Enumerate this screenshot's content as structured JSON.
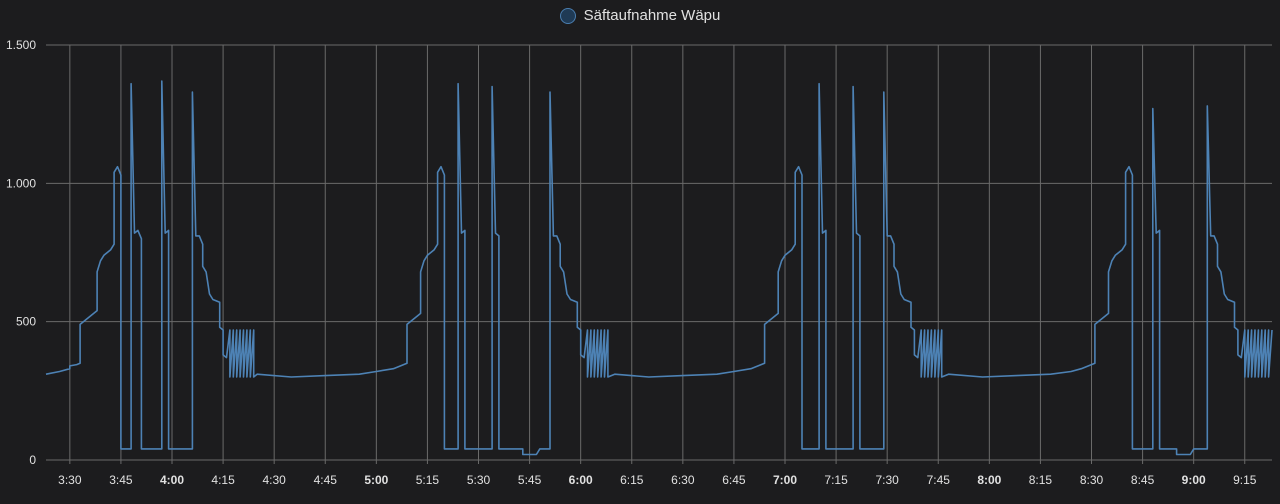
{
  "legend": {
    "label": "Säftaufnahme Wäpu"
  },
  "colors": {
    "line": "#4d82b5",
    "grid": "#6a6a6a",
    "background": "#1c1c1e",
    "text": "#e1e1e1"
  },
  "chart_data": {
    "type": "line",
    "title": "",
    "xlabel": "",
    "ylabel": "",
    "grid": true,
    "legend_position": "top-center",
    "xlim": [
      "3:23",
      "9:23"
    ],
    "ylim": [
      0,
      1500
    ],
    "y_ticks": [
      {
        "value": 0,
        "label": "0"
      },
      {
        "value": 500,
        "label": "500"
      },
      {
        "value": 1000,
        "label": "1.000"
      },
      {
        "value": 1500,
        "label": "1.500"
      }
    ],
    "x_ticks": [
      {
        "value": "3:30",
        "label": "3:30",
        "bold": false
      },
      {
        "value": "3:45",
        "label": "3:45",
        "bold": false
      },
      {
        "value": "4:00",
        "label": "4:00",
        "bold": true
      },
      {
        "value": "4:15",
        "label": "4:15",
        "bold": false
      },
      {
        "value": "4:30",
        "label": "4:30",
        "bold": false
      },
      {
        "value": "4:45",
        "label": "4:45",
        "bold": false
      },
      {
        "value": "5:00",
        "label": "5:00",
        "bold": true
      },
      {
        "value": "5:15",
        "label": "5:15",
        "bold": false
      },
      {
        "value": "5:30",
        "label": "5:30",
        "bold": false
      },
      {
        "value": "5:45",
        "label": "5:45",
        "bold": false
      },
      {
        "value": "6:00",
        "label": "6:00",
        "bold": true
      },
      {
        "value": "6:15",
        "label": "6:15",
        "bold": false
      },
      {
        "value": "6:30",
        "label": "6:30",
        "bold": false
      },
      {
        "value": "6:45",
        "label": "6:45",
        "bold": false
      },
      {
        "value": "7:00",
        "label": "7:00",
        "bold": true
      },
      {
        "value": "7:15",
        "label": "7:15",
        "bold": false
      },
      {
        "value": "7:30",
        "label": "7:30",
        "bold": false
      },
      {
        "value": "7:45",
        "label": "7:45",
        "bold": false
      },
      {
        "value": "8:00",
        "label": "8:00",
        "bold": true
      },
      {
        "value": "8:15",
        "label": "8:15",
        "bold": false
      },
      {
        "value": "8:30",
        "label": "8:30",
        "bold": false
      },
      {
        "value": "8:45",
        "label": "8:45",
        "bold": false
      },
      {
        "value": "9:00",
        "label": "9:00",
        "bold": true
      },
      {
        "value": "9:15",
        "label": "9:15",
        "bold": false
      }
    ],
    "series": [
      {
        "name": "Säftaufnahme Wäpu",
        "points": [
          [
            "3:23",
            310
          ],
          [
            "3:27",
            320
          ],
          [
            "3:30",
            330
          ],
          [
            "3:30",
            340
          ],
          [
            "3:32",
            345
          ],
          [
            "3:33",
            350
          ],
          [
            "3:33",
            490
          ],
          [
            "3:35",
            510
          ],
          [
            "3:36",
            520
          ],
          [
            "3:37",
            530
          ],
          [
            "3:38",
            540
          ],
          [
            "3:38",
            680
          ],
          [
            "3:39",
            720
          ],
          [
            "3:40",
            740
          ],
          [
            "3:42",
            760
          ],
          [
            "3:43",
            780
          ],
          [
            "3:43",
            1040
          ],
          [
            "3:44",
            1060
          ],
          [
            "3:45",
            1030
          ],
          [
            "3:45",
            40
          ],
          [
            "3:48",
            40
          ],
          [
            "3:48",
            1360
          ],
          [
            "3:49",
            820
          ],
          [
            "3:50",
            830
          ],
          [
            "3:51",
            800
          ],
          [
            "3:51",
            40
          ],
          [
            "3:57",
            40
          ],
          [
            "3:57",
            1370
          ],
          [
            "3:58",
            820
          ],
          [
            "3:59",
            830
          ],
          [
            "3:59",
            40
          ],
          [
            "4:06",
            40
          ],
          [
            "4:06",
            1330
          ],
          [
            "4:07",
            810
          ],
          [
            "4:08",
            810
          ],
          [
            "4:09",
            780
          ],
          [
            "4:09",
            700
          ],
          [
            "4:10",
            680
          ],
          [
            "4:11",
            600
          ],
          [
            "4:12",
            580
          ],
          [
            "4:14",
            570
          ],
          [
            "4:14",
            480
          ],
          [
            "4:15",
            470
          ],
          [
            "4:15",
            380
          ],
          [
            "4:16",
            370
          ],
          [
            "4:17",
            470
          ],
          [
            "4:17",
            300
          ],
          [
            "4:18",
            470
          ],
          [
            "4:18",
            300
          ],
          [
            "4:19",
            470
          ],
          [
            "4:19",
            300
          ],
          [
            "4:20",
            470
          ],
          [
            "4:20",
            300
          ],
          [
            "4:21",
            470
          ],
          [
            "4:21",
            300
          ],
          [
            "4:22",
            470
          ],
          [
            "4:22",
            300
          ],
          [
            "4:23",
            470
          ],
          [
            "4:23",
            300
          ],
          [
            "4:24",
            470
          ],
          [
            "4:24",
            300
          ],
          [
            "4:25",
            310
          ],
          [
            "4:35",
            300
          ],
          [
            "4:45",
            305
          ],
          [
            "4:55",
            310
          ],
          [
            "5:00",
            320
          ],
          [
            "5:05",
            330
          ],
          [
            "5:09",
            350
          ],
          [
            "5:09",
            490
          ],
          [
            "5:11",
            510
          ],
          [
            "5:12",
            520
          ],
          [
            "5:13",
            530
          ],
          [
            "5:13",
            680
          ],
          [
            "5:14",
            720
          ],
          [
            "5:15",
            740
          ],
          [
            "5:17",
            760
          ],
          [
            "5:18",
            780
          ],
          [
            "5:18",
            1040
          ],
          [
            "5:19",
            1060
          ],
          [
            "5:20",
            1030
          ],
          [
            "5:20",
            40
          ],
          [
            "5:24",
            40
          ],
          [
            "5:24",
            1360
          ],
          [
            "5:25",
            820
          ],
          [
            "5:26",
            830
          ],
          [
            "5:26",
            40
          ],
          [
            "5:34",
            40
          ],
          [
            "5:34",
            1350
          ],
          [
            "5:35",
            820
          ],
          [
            "5:36",
            810
          ],
          [
            "5:36",
            40
          ],
          [
            "5:43",
            40
          ],
          [
            "5:43",
            20
          ],
          [
            "5:47",
            20
          ],
          [
            "5:48",
            40
          ],
          [
            "5:51",
            40
          ],
          [
            "5:51",
            1330
          ],
          [
            "5:52",
            810
          ],
          [
            "5:53",
            810
          ],
          [
            "5:54",
            780
          ],
          [
            "5:54",
            700
          ],
          [
            "5:55",
            680
          ],
          [
            "5:56",
            600
          ],
          [
            "5:57",
            580
          ],
          [
            "5:59",
            570
          ],
          [
            "5:59",
            480
          ],
          [
            "6:00",
            470
          ],
          [
            "6:00",
            380
          ],
          [
            "6:01",
            370
          ],
          [
            "6:02",
            470
          ],
          [
            "6:02",
            300
          ],
          [
            "6:03",
            470
          ],
          [
            "6:03",
            300
          ],
          [
            "6:04",
            470
          ],
          [
            "6:04",
            300
          ],
          [
            "6:05",
            470
          ],
          [
            "6:05",
            300
          ],
          [
            "6:06",
            470
          ],
          [
            "6:06",
            300
          ],
          [
            "6:07",
            470
          ],
          [
            "6:07",
            300
          ],
          [
            "6:08",
            470
          ],
          [
            "6:08",
            300
          ],
          [
            "6:10",
            310
          ],
          [
            "6:20",
            300
          ],
          [
            "6:30",
            305
          ],
          [
            "6:40",
            310
          ],
          [
            "6:45",
            320
          ],
          [
            "6:50",
            330
          ],
          [
            "6:54",
            350
          ],
          [
            "6:54",
            490
          ],
          [
            "6:56",
            510
          ],
          [
            "6:57",
            520
          ],
          [
            "6:58",
            530
          ],
          [
            "6:58",
            680
          ],
          [
            "6:59",
            720
          ],
          [
            "7:00",
            740
          ],
          [
            "7:02",
            760
          ],
          [
            "7:03",
            780
          ],
          [
            "7:03",
            1040
          ],
          [
            "7:04",
            1060
          ],
          [
            "7:05",
            1030
          ],
          [
            "7:05",
            40
          ],
          [
            "7:10",
            40
          ],
          [
            "7:10",
            1360
          ],
          [
            "7:11",
            820
          ],
          [
            "7:12",
            830
          ],
          [
            "7:12",
            40
          ],
          [
            "7:20",
            40
          ],
          [
            "7:20",
            1350
          ],
          [
            "7:21",
            820
          ],
          [
            "7:22",
            810
          ],
          [
            "7:22",
            40
          ],
          [
            "7:29",
            40
          ],
          [
            "7:29",
            1330
          ],
          [
            "7:30",
            810
          ],
          [
            "7:31",
            810
          ],
          [
            "7:32",
            780
          ],
          [
            "7:32",
            700
          ],
          [
            "7:33",
            680
          ],
          [
            "7:34",
            600
          ],
          [
            "7:35",
            580
          ],
          [
            "7:37",
            570
          ],
          [
            "7:37",
            480
          ],
          [
            "7:38",
            470
          ],
          [
            "7:38",
            380
          ],
          [
            "7:39",
            370
          ],
          [
            "7:40",
            470
          ],
          [
            "7:40",
            300
          ],
          [
            "7:41",
            470
          ],
          [
            "7:41",
            300
          ],
          [
            "7:42",
            470
          ],
          [
            "7:42",
            300
          ],
          [
            "7:43",
            470
          ],
          [
            "7:43",
            300
          ],
          [
            "7:44",
            470
          ],
          [
            "7:44",
            300
          ],
          [
            "7:45",
            470
          ],
          [
            "7:45",
            300
          ],
          [
            "7:46",
            470
          ],
          [
            "7:46",
            300
          ],
          [
            "7:48",
            310
          ],
          [
            "7:58",
            300
          ],
          [
            "8:08",
            305
          ],
          [
            "8:18",
            310
          ],
          [
            "8:24",
            320
          ],
          [
            "8:27",
            330
          ],
          [
            "8:31",
            350
          ],
          [
            "8:31",
            490
          ],
          [
            "8:33",
            510
          ],
          [
            "8:34",
            520
          ],
          [
            "8:35",
            530
          ],
          [
            "8:35",
            680
          ],
          [
            "8:36",
            720
          ],
          [
            "8:37",
            740
          ],
          [
            "8:39",
            760
          ],
          [
            "8:40",
            780
          ],
          [
            "8:40",
            1040
          ],
          [
            "8:41",
            1060
          ],
          [
            "8:42",
            1030
          ],
          [
            "8:42",
            40
          ],
          [
            "8:48",
            40
          ],
          [
            "8:48",
            1270
          ],
          [
            "8:49",
            820
          ],
          [
            "8:50",
            830
          ],
          [
            "8:50",
            40
          ],
          [
            "8:55",
            40
          ],
          [
            "8:55",
            20
          ],
          [
            "8:59",
            20
          ],
          [
            "9:00",
            40
          ],
          [
            "9:04",
            40
          ],
          [
            "9:04",
            1280
          ],
          [
            "9:05",
            810
          ],
          [
            "9:06",
            810
          ],
          [
            "9:07",
            780
          ],
          [
            "9:07",
            700
          ],
          [
            "9:08",
            680
          ],
          [
            "9:09",
            600
          ],
          [
            "9:10",
            580
          ],
          [
            "9:12",
            570
          ],
          [
            "9:12",
            480
          ],
          [
            "9:13",
            470
          ],
          [
            "9:13",
            380
          ],
          [
            "9:14",
            370
          ],
          [
            "9:15",
            470
          ],
          [
            "9:15",
            300
          ],
          [
            "9:16",
            470
          ],
          [
            "9:16",
            300
          ],
          [
            "9:17",
            470
          ],
          [
            "9:17",
            300
          ],
          [
            "9:18",
            470
          ],
          [
            "9:18",
            300
          ],
          [
            "9:19",
            470
          ],
          [
            "9:19",
            300
          ],
          [
            "9:20",
            470
          ],
          [
            "9:20",
            300
          ],
          [
            "9:21",
            470
          ],
          [
            "9:21",
            300
          ],
          [
            "9:22",
            470
          ],
          [
            "9:22",
            300
          ],
          [
            "9:23",
            470
          ]
        ]
      }
    ]
  }
}
